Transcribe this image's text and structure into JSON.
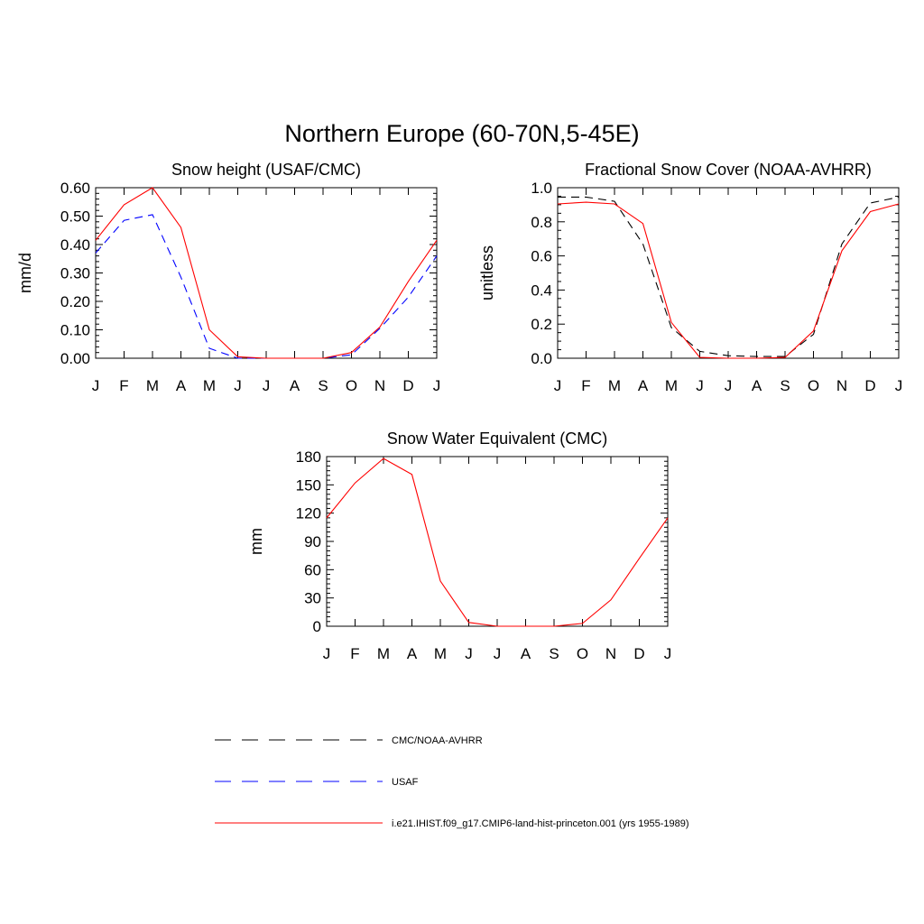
{
  "title": "Northern Europe (60-70N,5-45E)",
  "chart_data": [
    {
      "type": "line",
      "title": "Snow height (USAF/CMC)",
      "ylabel": "mm/d",
      "xlabel": "",
      "categories": [
        "J",
        "F",
        "M",
        "A",
        "M",
        "J",
        "J",
        "A",
        "S",
        "O",
        "N",
        "D",
        "J"
      ],
      "ylim": [
        0,
        0.6
      ],
      "yticks": [
        "0.00",
        "0.10",
        "0.20",
        "0.30",
        "0.40",
        "0.50",
        "0.60"
      ],
      "series": [
        {
          "name": "CMC/NOAA-AVHRR",
          "color": "#000000",
          "style": "dash",
          "values": [
            0,
            0,
            0,
            0,
            0,
            0,
            0,
            0,
            0,
            0,
            0,
            0,
            0
          ]
        },
        {
          "name": "USAF",
          "color": "#0000ff",
          "style": "dash",
          "values": [
            0.37,
            0.485,
            0.505,
            0.285,
            0.035,
            0.0,
            0.0,
            0.0,
            0.0,
            0.012,
            0.105,
            0.215,
            0.36
          ]
        },
        {
          "name": "i.e21.IHIST.f09_g17.CMIP6-land-hist-princeton.001 (yrs 1955-1989)",
          "color": "#ff0000",
          "style": "solid",
          "values": [
            0.415,
            0.54,
            0.6,
            0.46,
            0.1,
            0.005,
            0.0,
            0.0,
            0.0,
            0.02,
            0.11,
            0.27,
            0.415
          ]
        }
      ]
    },
    {
      "type": "line",
      "title": "Fractional Snow Cover (NOAA-AVHRR)",
      "ylabel": "unitless",
      "xlabel": "",
      "categories": [
        "J",
        "F",
        "M",
        "A",
        "M",
        "J",
        "J",
        "A",
        "S",
        "O",
        "N",
        "D",
        "J"
      ],
      "ylim": [
        0,
        1.0
      ],
      "yticks": [
        "0.0",
        "0.2",
        "0.4",
        "0.6",
        "0.8",
        "1.0"
      ],
      "series": [
        {
          "name": "CMC/NOAA-AVHRR",
          "color": "#000000",
          "style": "dash",
          "values": [
            0.945,
            0.945,
            0.92,
            0.67,
            0.18,
            0.04,
            0.015,
            0.01,
            0.01,
            0.14,
            0.67,
            0.91,
            0.945
          ]
        },
        {
          "name": "i.e21.IHIST.f09_g17.CMIP6-land-hist-princeton.001 (yrs 1955-1989)",
          "color": "#ff0000",
          "style": "solid",
          "values": [
            0.905,
            0.915,
            0.905,
            0.79,
            0.21,
            0.005,
            0.0,
            0.0,
            0.005,
            0.16,
            0.63,
            0.86,
            0.905
          ]
        }
      ]
    },
    {
      "type": "line",
      "title": "Snow Water Equivalent (CMC)",
      "ylabel": "mm",
      "xlabel": "",
      "categories": [
        "J",
        "F",
        "M",
        "A",
        "M",
        "J",
        "J",
        "A",
        "S",
        "O",
        "N",
        "D",
        "J"
      ],
      "ylim": [
        0,
        180
      ],
      "yticks": [
        "0",
        "30",
        "60",
        "90",
        "120",
        "150",
        "180"
      ],
      "series": [
        {
          "name": "CMC/NOAA-AVHRR",
          "color": "#000000",
          "style": "dash",
          "values": [
            0,
            0,
            0,
            0,
            0,
            0,
            0,
            0,
            0,
            0,
            0,
            0,
            0
          ]
        },
        {
          "name": "i.e21.IHIST.f09_g17.CMIP6-land-hist-princeton.001 (yrs 1955-1989)",
          "color": "#ff0000",
          "style": "solid",
          "values": [
            115,
            152,
            178,
            161,
            48,
            4,
            0,
            0,
            0,
            3,
            28,
            72,
            115
          ]
        }
      ]
    }
  ],
  "legend": [
    {
      "label": "CMC/NOAA-AVHRR",
      "color": "#000000",
      "style": "dash"
    },
    {
      "label": "USAF",
      "color": "#0000ff",
      "style": "dash"
    },
    {
      "label": "i.e21.IHIST.f09_g17.CMIP6-land-hist-princeton.001 (yrs 1955-1989)",
      "color": "#ff0000",
      "style": "solid"
    }
  ]
}
